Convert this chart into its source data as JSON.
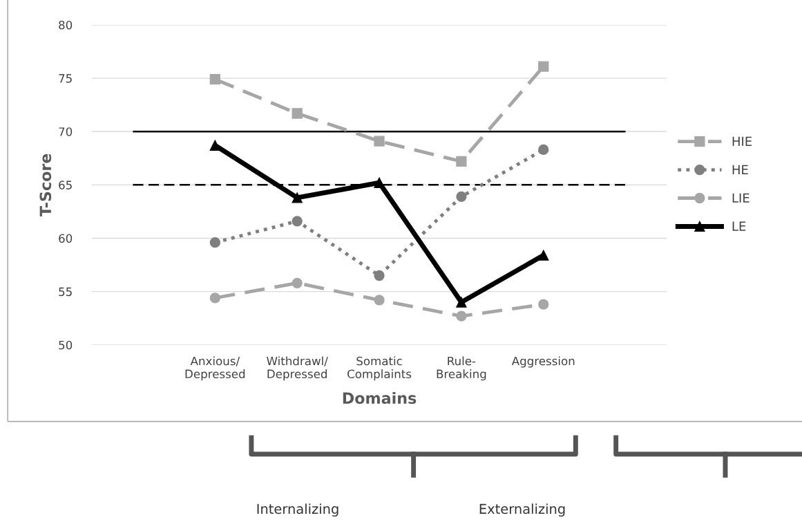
{
  "chart_data": {
    "type": "line",
    "xlabel": "Domains",
    "ylabel": "T-Score",
    "categories": [
      null,
      "Anxious/\nDepressed",
      "Withdrawl/\nDepressed",
      "Somatic\nComplaints",
      "Rule-\nBreaking",
      "Aggression",
      null
    ],
    "series": [
      {
        "name": "HIE",
        "color": "#a6a6a6",
        "line_style": "dashed",
        "marker": "square",
        "values": [
          null,
          74.9,
          71.7,
          69.1,
          67.2,
          76.1,
          null
        ]
      },
      {
        "name": "HE",
        "color": "#7f7f7f",
        "line_style": "dotted",
        "marker": "circle",
        "values": [
          null,
          59.6,
          61.6,
          56.5,
          63.9,
          68.3,
          null
        ]
      },
      {
        "name": "LIE",
        "color": "#a6a6a6",
        "line_style": "dashed",
        "marker": "circle",
        "values": [
          null,
          54.4,
          55.8,
          54.2,
          52.7,
          53.8,
          null
        ]
      },
      {
        "name": "LE",
        "color": "#000000",
        "line_style": "solid",
        "marker": "triangle",
        "values": [
          null,
          68.7,
          63.8,
          65.2,
          54.0,
          58.4,
          null
        ]
      }
    ],
    "ylim": [
      50,
      80
    ],
    "yticks": [
      50,
      55,
      60,
      65,
      70,
      75,
      80
    ],
    "grid": "y",
    "legend": "right",
    "ref_lines": [
      {
        "axis": "y",
        "value": 70,
        "color": "#000000",
        "line_style": "solid"
      },
      {
        "axis": "y",
        "value": 65,
        "color": "#000000",
        "line_style": "dashed"
      }
    ],
    "annotations": [
      "Internalizing",
      "Externalizing"
    ]
  }
}
